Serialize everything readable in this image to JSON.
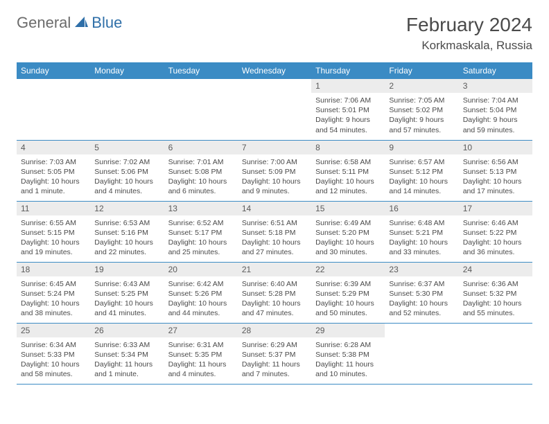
{
  "brand": {
    "general": "General",
    "blue": "Blue"
  },
  "title": "February 2024",
  "location": "Korkmaskala, Russia",
  "colors": {
    "header_bg": "#3b8bc4",
    "header_fg": "#ffffff",
    "daynum_bg": "#ececec",
    "border": "#3b8bc4",
    "text": "#4a4a4a"
  },
  "day_names": [
    "Sunday",
    "Monday",
    "Tuesday",
    "Wednesday",
    "Thursday",
    "Friday",
    "Saturday"
  ],
  "weeks": [
    [
      null,
      null,
      null,
      null,
      {
        "n": "1",
        "sr": "7:06 AM",
        "ss": "5:01 PM",
        "dl": "9 hours and 54 minutes."
      },
      {
        "n": "2",
        "sr": "7:05 AM",
        "ss": "5:02 PM",
        "dl": "9 hours and 57 minutes."
      },
      {
        "n": "3",
        "sr": "7:04 AM",
        "ss": "5:04 PM",
        "dl": "9 hours and 59 minutes."
      }
    ],
    [
      {
        "n": "4",
        "sr": "7:03 AM",
        "ss": "5:05 PM",
        "dl": "10 hours and 1 minute."
      },
      {
        "n": "5",
        "sr": "7:02 AM",
        "ss": "5:06 PM",
        "dl": "10 hours and 4 minutes."
      },
      {
        "n": "6",
        "sr": "7:01 AM",
        "ss": "5:08 PM",
        "dl": "10 hours and 6 minutes."
      },
      {
        "n": "7",
        "sr": "7:00 AM",
        "ss": "5:09 PM",
        "dl": "10 hours and 9 minutes."
      },
      {
        "n": "8",
        "sr": "6:58 AM",
        "ss": "5:11 PM",
        "dl": "10 hours and 12 minutes."
      },
      {
        "n": "9",
        "sr": "6:57 AM",
        "ss": "5:12 PM",
        "dl": "10 hours and 14 minutes."
      },
      {
        "n": "10",
        "sr": "6:56 AM",
        "ss": "5:13 PM",
        "dl": "10 hours and 17 minutes."
      }
    ],
    [
      {
        "n": "11",
        "sr": "6:55 AM",
        "ss": "5:15 PM",
        "dl": "10 hours and 19 minutes."
      },
      {
        "n": "12",
        "sr": "6:53 AM",
        "ss": "5:16 PM",
        "dl": "10 hours and 22 minutes."
      },
      {
        "n": "13",
        "sr": "6:52 AM",
        "ss": "5:17 PM",
        "dl": "10 hours and 25 minutes."
      },
      {
        "n": "14",
        "sr": "6:51 AM",
        "ss": "5:18 PM",
        "dl": "10 hours and 27 minutes."
      },
      {
        "n": "15",
        "sr": "6:49 AM",
        "ss": "5:20 PM",
        "dl": "10 hours and 30 minutes."
      },
      {
        "n": "16",
        "sr": "6:48 AM",
        "ss": "5:21 PM",
        "dl": "10 hours and 33 minutes."
      },
      {
        "n": "17",
        "sr": "6:46 AM",
        "ss": "5:22 PM",
        "dl": "10 hours and 36 minutes."
      }
    ],
    [
      {
        "n": "18",
        "sr": "6:45 AM",
        "ss": "5:24 PM",
        "dl": "10 hours and 38 minutes."
      },
      {
        "n": "19",
        "sr": "6:43 AM",
        "ss": "5:25 PM",
        "dl": "10 hours and 41 minutes."
      },
      {
        "n": "20",
        "sr": "6:42 AM",
        "ss": "5:26 PM",
        "dl": "10 hours and 44 minutes."
      },
      {
        "n": "21",
        "sr": "6:40 AM",
        "ss": "5:28 PM",
        "dl": "10 hours and 47 minutes."
      },
      {
        "n": "22",
        "sr": "6:39 AM",
        "ss": "5:29 PM",
        "dl": "10 hours and 50 minutes."
      },
      {
        "n": "23",
        "sr": "6:37 AM",
        "ss": "5:30 PM",
        "dl": "10 hours and 52 minutes."
      },
      {
        "n": "24",
        "sr": "6:36 AM",
        "ss": "5:32 PM",
        "dl": "10 hours and 55 minutes."
      }
    ],
    [
      {
        "n": "25",
        "sr": "6:34 AM",
        "ss": "5:33 PM",
        "dl": "10 hours and 58 minutes."
      },
      {
        "n": "26",
        "sr": "6:33 AM",
        "ss": "5:34 PM",
        "dl": "11 hours and 1 minute."
      },
      {
        "n": "27",
        "sr": "6:31 AM",
        "ss": "5:35 PM",
        "dl": "11 hours and 4 minutes."
      },
      {
        "n": "28",
        "sr": "6:29 AM",
        "ss": "5:37 PM",
        "dl": "11 hours and 7 minutes."
      },
      {
        "n": "29",
        "sr": "6:28 AM",
        "ss": "5:38 PM",
        "dl": "11 hours and 10 minutes."
      },
      null,
      null
    ]
  ],
  "labels": {
    "sunrise": "Sunrise:",
    "sunset": "Sunset:",
    "daylight": "Daylight:"
  }
}
